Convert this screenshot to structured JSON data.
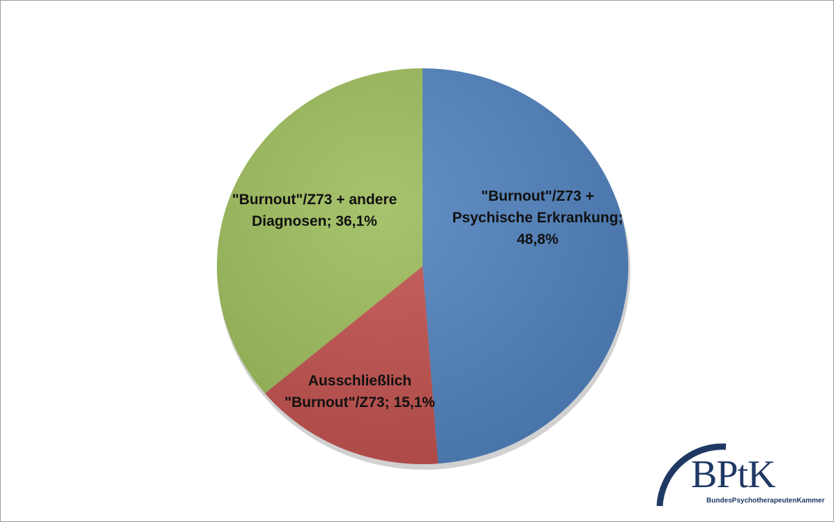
{
  "chart_data": {
    "type": "pie",
    "categories": [
      "\"Burnout\"/Z73 + Psychische Erkrankung;",
      "Ausschließlich \"Burnout\"/Z73;",
      "\"Burnout\"/Z73 + andere Diagnosen;"
    ],
    "values": [
      48.8,
      15.1,
      36.1
    ],
    "value_labels": [
      "48,8%",
      "15,1%",
      "36,1%"
    ],
    "colors": [
      "#4f81bd",
      "#c0504d",
      "#9bbb59"
    ]
  },
  "logo": {
    "title": "BPtK",
    "subtitle": "BundesPsychotherapeutenKammer"
  }
}
